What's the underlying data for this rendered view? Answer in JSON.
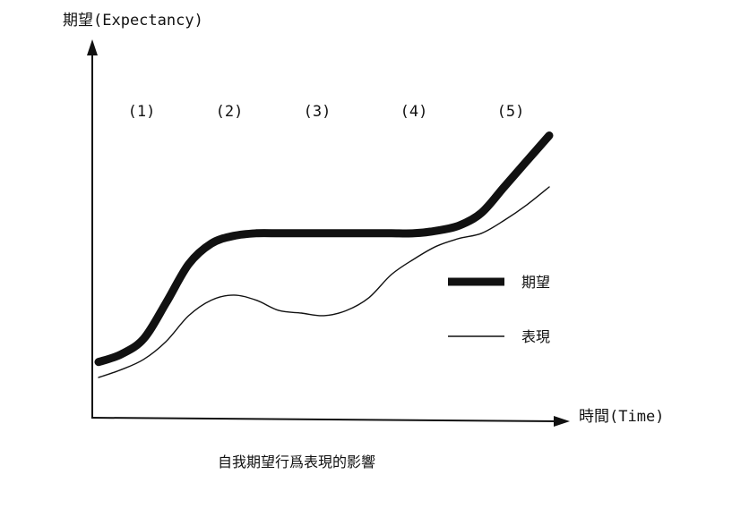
{
  "chart_data": {
    "type": "line",
    "title": "",
    "ylabel": "期望(Expectancy)",
    "xlabel": "時間(Time)",
    "caption": "自我期望行爲表現的影響",
    "phases": [
      "(1)",
      "(2)",
      "(3)",
      "(4)",
      "(5)"
    ],
    "legend": {
      "position": "right",
      "entries": [
        {
          "label": "期望",
          "style": "thick"
        },
        {
          "label": "表現",
          "style": "thin"
        }
      ]
    },
    "grid": false,
    "xlim": [
      0,
      100
    ],
    "ylim": [
      0,
      100
    ],
    "series": [
      {
        "name": "期望",
        "x": [
          0,
          5,
          10,
          15,
          20,
          25,
          30,
          35,
          40,
          45,
          50,
          55,
          60,
          65,
          70,
          75,
          80,
          85,
          90,
          95,
          100
        ],
        "y": [
          22,
          25,
          31,
          45,
          60,
          68,
          71,
          72,
          72,
          72,
          72,
          72,
          72,
          72,
          72,
          73,
          75,
          80,
          90,
          100,
          110
        ]
      },
      {
        "name": "表現",
        "x": [
          0,
          5,
          10,
          15,
          20,
          25,
          30,
          35,
          40,
          45,
          50,
          55,
          60,
          65,
          70,
          75,
          80,
          85,
          90,
          95,
          100
        ],
        "y": [
          16,
          19,
          23,
          30,
          40,
          46,
          48,
          46,
          42,
          41,
          40,
          42,
          47,
          56,
          62,
          67,
          70,
          72,
          77,
          83,
          90
        ]
      }
    ]
  }
}
